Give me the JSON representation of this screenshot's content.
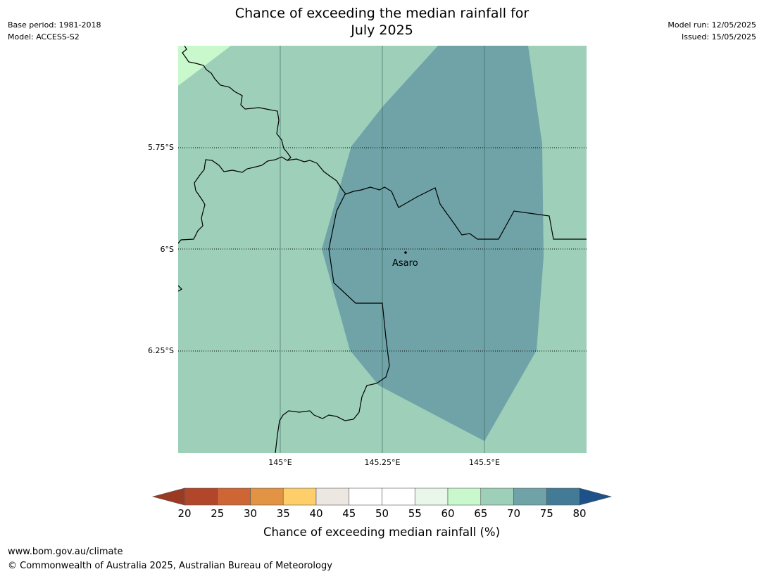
{
  "header": {
    "title_line1": "Chance of exceeding the median rainfall for",
    "title_line2": "July 2025",
    "base_period": "Base period: 1981-2018",
    "model": "Model: ACCESS-S2",
    "model_run": "Model run: 12/05/2025",
    "issued": "Issued: 15/05/2025"
  },
  "map": {
    "lat_labels": [
      "5.75°S",
      "6°S",
      "6.25°S"
    ],
    "lon_labels": [
      "145°E",
      "145.25°E",
      "145.5°E"
    ],
    "place": {
      "name": "Asaro"
    },
    "colors": {
      "zone_65_70": "#9ecfb9",
      "zone_70_75": "#6fa3a7",
      "zone_60_65": "#c8f8cb"
    }
  },
  "colorbar": {
    "tick_labels": [
      "20",
      "25",
      "30",
      "35",
      "40",
      "45",
      "50",
      "55",
      "60",
      "65",
      "70",
      "75",
      "80"
    ],
    "colors": [
      "#b1462a",
      "#cd6534",
      "#e29444",
      "#fece6a",
      "#ede7e1",
      "#ffffff",
      "#ffffff",
      "#e8f7e9",
      "#c8f8cb",
      "#9ecfb9",
      "#6fa3a7",
      "#437b96"
    ],
    "under_color": "#9b3a22",
    "over_color": "#1d518a",
    "label": "Chance of exceeding median rainfall (%)"
  },
  "footer": {
    "url": "www.bom.gov.au/climate",
    "copyright": "© Commonwealth of Australia 2025, Australian Bureau of Meteorology"
  }
}
